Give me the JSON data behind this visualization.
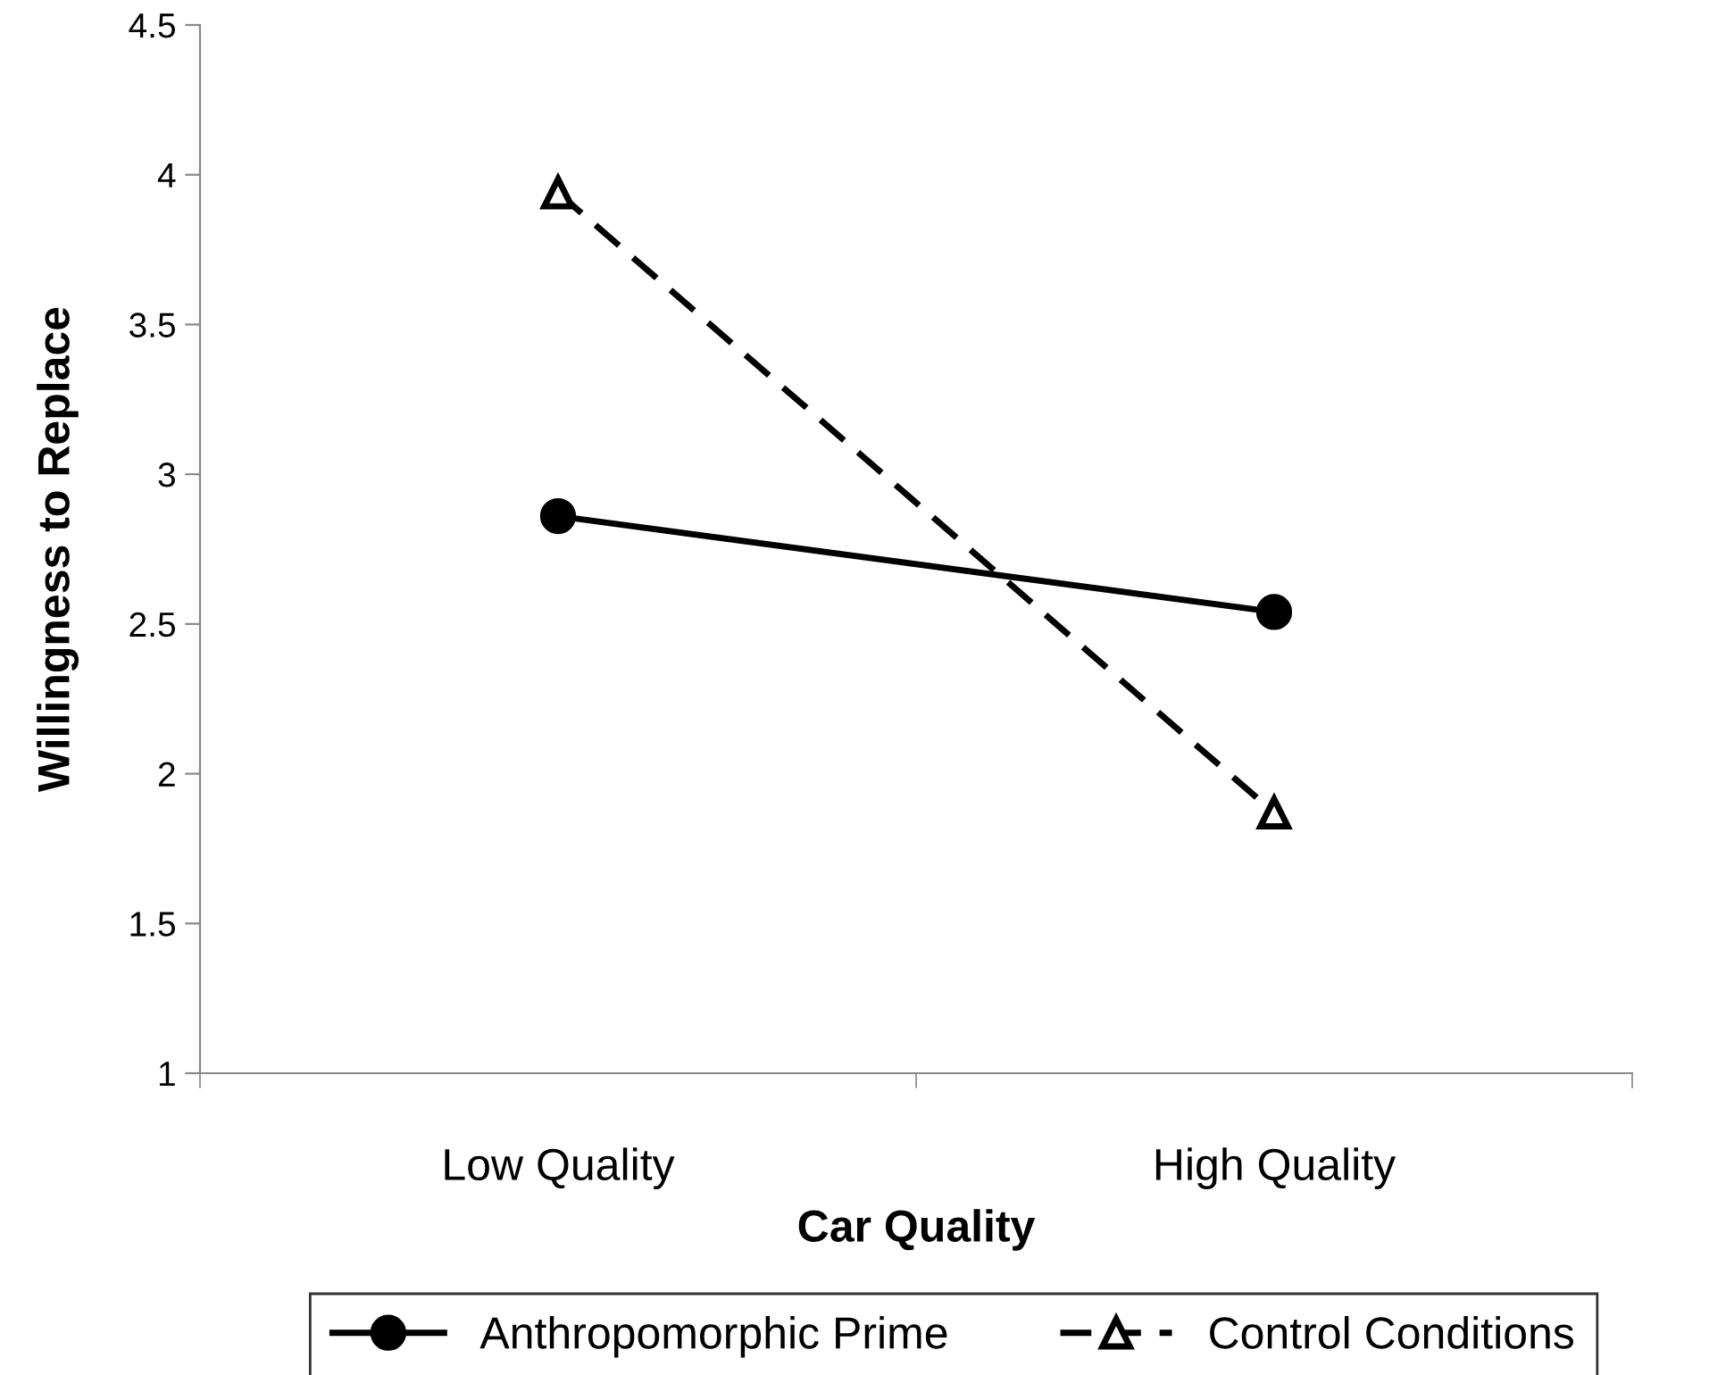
{
  "chart_data": {
    "type": "line",
    "xlabel": "Car Quality",
    "ylabel": "Willingness to Replace",
    "categories": [
      "Low Quality",
      "High Quality"
    ],
    "series": [
      {
        "name": "Anthropomorphic Prime",
        "color": "#000000",
        "values": [
          2.86,
          2.54
        ],
        "marker": "circle",
        "line_style": "solid"
      },
      {
        "name": "Control Conditions",
        "color": "#000000",
        "values": [
          3.94,
          1.87
        ],
        "marker": "triangle",
        "line_style": "dashed"
      }
    ],
    "ylim": [
      1,
      4.5
    ],
    "yticks": [
      1,
      1.5,
      2,
      2.5,
      3,
      3.5,
      4,
      4.5
    ],
    "grid": false,
    "legend": "bottom"
  }
}
